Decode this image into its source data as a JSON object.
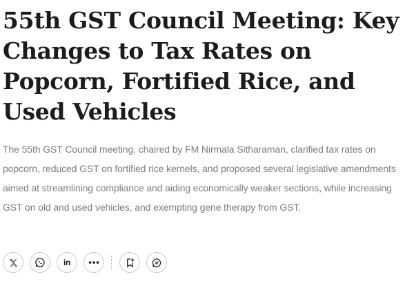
{
  "article": {
    "headline": "55th GST Council Meeting: Key Changes to Tax Rates on Popcorn, Fortified Rice, and Used Vehicles",
    "summary": "The 55th GST Council meeting, chaired by FM Nirmala Sitharaman, clarified tax rates on popcorn, reduced GST on fortified rice kernels, and proposed several legislative amendments aimed at streamlining compliance and aiding economically weaker sections, while increasing GST on old and used vehicles, and exempting gene therapy from GST."
  },
  "share_bar": {
    "icons": [
      "x-twitter-icon",
      "whatsapp-icon",
      "linkedin-icon",
      "more-icon",
      "bookmark-add-icon",
      "comment-icon"
    ],
    "linkedin_label": "in",
    "icon_color": "#222222",
    "border_color": "#c9c9c9"
  }
}
